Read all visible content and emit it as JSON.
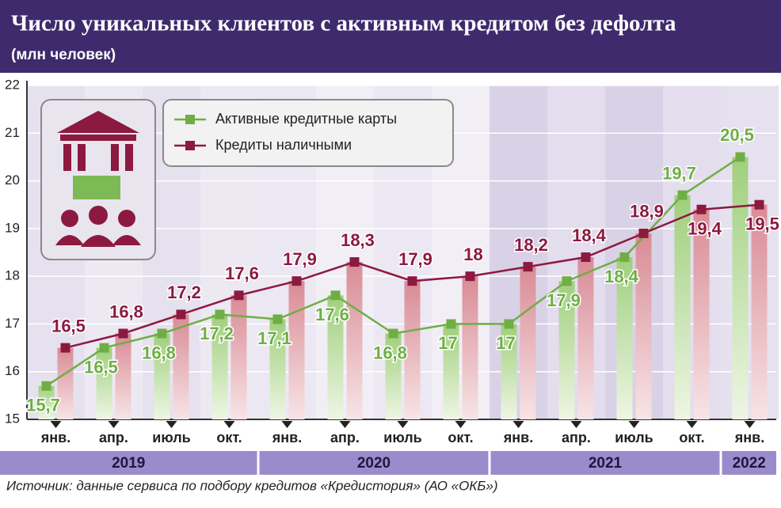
{
  "chart_data": {
    "type": "line",
    "title": "Число уникальных клиентов с активным кредитом без дефолта",
    "subtitle": "(млн человек)",
    "categories": [
      "янв.",
      "апр.",
      "июль",
      "окт.",
      "янв.",
      "апр.",
      "июль",
      "окт.",
      "янв.",
      "апр.",
      "июль",
      "окт.",
      "янв."
    ],
    "years": [
      "2019",
      "2020",
      "2021",
      "2022"
    ],
    "series": [
      {
        "name": "Активные кредитные карты",
        "color": "#6fae45",
        "values": [
          15.7,
          16.5,
          16.8,
          17.2,
          17.1,
          17.6,
          16.8,
          17,
          17,
          17.9,
          18.4,
          19.7,
          20.5
        ],
        "value_labels": [
          "15,7",
          "16,5",
          "16,8",
          "17,2",
          "17,1",
          "17,6",
          "16,8",
          "17",
          "17",
          "17,9",
          "18,4",
          "19,7",
          "20,5"
        ]
      },
      {
        "name": "Кредиты наличными",
        "color": "#8c1a40",
        "values": [
          16.5,
          16.8,
          17.2,
          17.6,
          17.9,
          18.3,
          17.9,
          18,
          18.2,
          18.4,
          18.9,
          19.4,
          19.5
        ],
        "value_labels": [
          "16,5",
          "16,8",
          "17,2",
          "17,6",
          "17,9",
          "18,3",
          "17,9",
          "18",
          "18,2",
          "18,4",
          "18,9",
          "19,4",
          "19,5"
        ]
      }
    ],
    "ylim": [
      15,
      22
    ],
    "yticks": [
      15,
      16,
      17,
      18,
      19,
      20,
      21,
      22
    ],
    "grid": true,
    "source": "Источник: данные сервиса по подбору кредитов «Кредистория» (АО «ОКБ»)"
  }
}
